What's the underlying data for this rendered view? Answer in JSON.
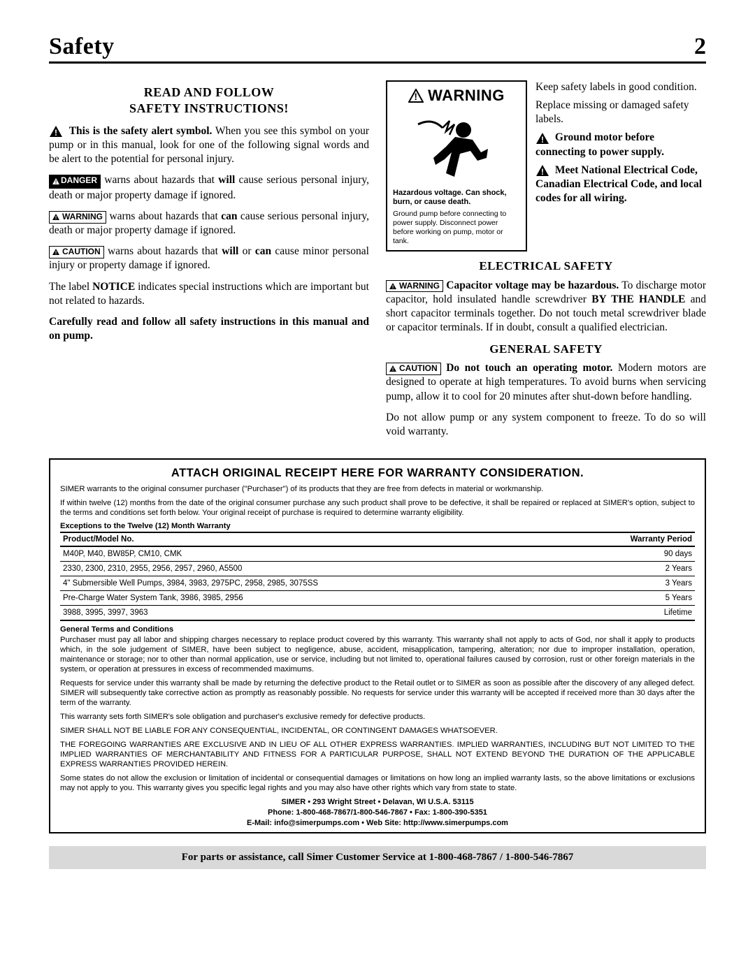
{
  "header": {
    "title": "Safety",
    "page_number": "2"
  },
  "left": {
    "heading_l1": "READ AND FOLLOW",
    "heading_l2": "SAFETY INSTRUCTIONS!",
    "p1_bold": "This is the safety alert symbol.",
    "p1_rest": " When you see this symbol on your pump or in this manual, look for one of the following signal words and be alert to the potential for personal injury.",
    "danger_label": "DANGER",
    "p_danger_a": " warns about hazards that ",
    "p_danger_b": "will",
    "p_danger_c": " cause serious personal injury, death or major property damage if ignored.",
    "warning_label": "WARNING",
    "p_warn_a": " warns about hazards that ",
    "p_warn_b": "can",
    "p_warn_c": " cause serious personal injury, death or major property damage if ignored.",
    "caution_label": "CAUTION",
    "p_caut_a": " warns about hazards that ",
    "p_caut_b": "will",
    "p_caut_c": " or ",
    "p_caut_d": "can",
    "p_caut_e": " cause minor personal injury or property damage if ignored.",
    "p_notice_a": "The label ",
    "p_notice_b": "NOTICE",
    "p_notice_c": " indicates special instructions which are important but not related to hazards.",
    "p_read": "Carefully read and follow all safety instructions in this manual and on pump."
  },
  "right": {
    "warn_head": "WARNING",
    "warn_cap1": "Hazardous voltage. Can shock, burn, or cause death.",
    "warn_cap2": "Ground pump before connecting to power supply. Disconnect power before working on pump, motor or tank.",
    "keep1": "Keep safety labels in good condition.",
    "keep2": "Replace missing or damaged safety labels.",
    "ground_bold": "Ground motor before connecting to power supply.",
    "nec_bold": "Meet National Electrical Code, Canadian Electrical Code, and local codes for all wiring.",
    "elec_head": "ELECTRICAL SAFETY",
    "elec_warn_label": "WARNING",
    "elec_bold": "Capacitor voltage may be hazardous.",
    "elec_rest_a": " To discharge motor capacitor, hold insulated handle screwdriver ",
    "elec_rest_b": "BY THE HANDLE",
    "elec_rest_c": " and short capacitor terminals together. Do not touch metal screwdriver blade or capacitor terminals. If in doubt, consult a qualified electrician.",
    "gen_head": "GENERAL SAFETY",
    "gen_caution_label": "CAUTION",
    "gen_bold": "Do not touch an operating motor.",
    "gen_rest": " Modern motors are designed to operate at high temperatures. To avoid burns when servicing pump, allow it to cool for 20 minutes after shut-down before handling.",
    "gen_p2": "Do not allow pump or any system component to freeze. To do so will void warranty."
  },
  "warranty": {
    "title": "ATTACH ORIGINAL RECEIPT HERE FOR WARRANTY CONSIDERATION.",
    "p1": "SIMER warrants to the original consumer purchaser (\"Purchaser\") of its products that they are free from defects in material or workmanship.",
    "p2": "If within twelve (12) months from the date of the original consumer purchase any such product shall prove to be defective, it shall be repaired or replaced at SIMER's option, subject to the terms and conditions set forth below. Your original receipt of purchase is required to determine warranty eligibility.",
    "exc_head": "Exceptions to the Twelve (12) Month Warranty",
    "col1": "Product/Model No.",
    "col2": "Warranty Period",
    "rows": [
      {
        "model": "M40P, M40, BW85P, CM10, CMK",
        "period": "90 days"
      },
      {
        "model": "2330, 2300, 2310, 2955, 2956, 2957, 2960, A5500",
        "period": "2 Years"
      },
      {
        "model": "4\" Submersible Well Pumps, 3984, 3983, 2975PC, 2958, 2985, 3075SS",
        "period": "3 Years"
      },
      {
        "model": "Pre-Charge Water System Tank, 3986, 3985, 2956",
        "period": "5 Years"
      },
      {
        "model": "3988, 3995, 3997, 3963",
        "period": "Lifetime"
      }
    ],
    "gtc_head": "General Terms and Conditions",
    "gtc1": "Purchaser must pay all labor and shipping charges necessary to replace product covered by this warranty. This warranty shall not apply to acts of God, nor shall it apply to products which, in the sole judgement of SIMER, have been subject to negligence, abuse, accident, misapplication, tampering, alteration; nor due to improper installation, operation, maintenance or storage; nor to other than normal application, use or service, including but not limited to, operational failures caused by corrosion, rust or other foreign materials in the system, or operation at pressures in excess of recommended maximums.",
    "gtc2": "Requests for service under this warranty shall be made by returning the defective product to the Retail outlet or to SIMER as soon as possible after the discovery of any alleged defect. SIMER will subsequently take corrective action as promptly as reasonably possible. No requests for service under this warranty will be accepted if received more than 30 days after the term of the warranty.",
    "gtc3": "This warranty sets forth SIMER's sole obligation and purchaser's exclusive remedy for defective products.",
    "gtc4": "SIMER SHALL NOT BE LIABLE FOR ANY CONSEQUENTIAL, INCIDENTAL, OR CONTINGENT DAMAGES WHATSOEVER.",
    "gtc5": "THE FOREGOING WARRANTIES ARE EXCLUSIVE AND IN LIEU OF ALL OTHER EXPRESS WARRANTIES. IMPLIED WARRANTIES, INCLUDING BUT NOT LIMITED TO THE IMPLIED WARRANTIES OF MERCHANTABILITY AND FITNESS FOR A PARTICULAR PURPOSE, SHALL NOT EXTEND BEYOND THE DURATION OF THE APPLICABLE EXPRESS WARRANTIES PROVIDED HEREIN.",
    "gtc6": "Some states do not allow the exclusion or limitation of incidental or consequential damages or limitations on how long an implied warranty lasts, so the above limitations or exclusions may not apply to you. This warranty gives you specific legal rights and you may also have other rights which vary from state to state.",
    "addr": "SIMER • 293 Wright Street • Delavan, WI U.S.A. 53115",
    "phone": "Phone: 1-800-468-7867/1-800-546-7867 • Fax: 1-800-390-5351",
    "email": "E-Mail: info@simerpumps.com • Web Site: http://www.simerpumps.com"
  },
  "footer": "For parts or assistance, call Simer Customer Service at 1-800-468-7867 / 1-800-546-7867"
}
